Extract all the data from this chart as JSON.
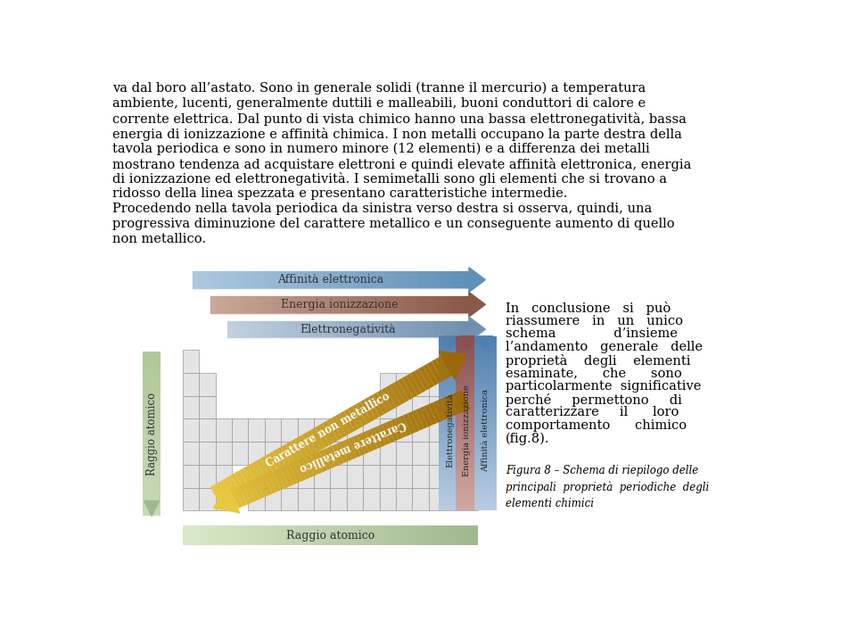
{
  "text_line1": "va dal boro all’astato. Sono in generale solidi (tranne il mercurio) a temperatura",
  "text_line2": "ambiente, lucenti, generalmente duttili e malleabili, buoni conduttori di calore e",
  "text_line3": "corrente elettrica. Dal punto di vista chimico hanno una bassa elettronegatività, bassa",
  "text_line4": "energia di ionizzazione e affinità chimica. I non metalli occupano la parte destra della",
  "text_line5": "tavola periodica e sono in numero minore (12 elementi) e a differenza dei metalli",
  "text_line6": "mostrano tendenza ad acquistare elettroni e quindi elevate affinità elettronica, energia",
  "text_line7": "di ionizzazione ed elettronegatività. I semimetalli sono gli elementi che si trovano a",
  "text_line8": "ridosso della linea spezzata e presentano caratteristiche intermedie.",
  "text_line9": "Procedendo nella tavola periodica da sinistra verso destra si osserva, quindi, una",
  "text_line10": "progressiva diminuzione del carattere metallico e un conseguente aumento di quello",
  "text_line11": "non metallico.",
  "text_right_line1": "In   conclusione   si   può",
  "text_right_line2": "riassumere   in   un   unico",
  "text_right_line3": "schema              d’insieme",
  "text_right_line4": "l’andamento   generale   delle",
  "text_right_line5": "proprietà    degli    elementi",
  "text_right_line6": "esaminate,      che      sono",
  "text_right_line7": "particolarmente  significative",
  "text_right_line8": "perché     permettono     di",
  "text_right_line9": "caratterizzare     il      loro",
  "text_right_line10": "comportamento      chimico",
  "text_right_line11": "(fig.8).",
  "caption": "Figura 8 – Schema di riepilogo delle\nprincipali  proprietà  periodiche  degli\nelementi chimici",
  "arrow_affinita_label": "Affinità elettronica",
  "arrow_energia_label": "Energia ionizzazione",
  "arrow_elettroneg_label": "Elettronegatività",
  "arrow_raggio_label": "Raggio atomico",
  "diag_carattere_non_metallico": "Carattere non metallico",
  "diag_carattere_metallico": "Carattere metallico",
  "vert_elettroneg_label": "Elettronegatività",
  "vert_energia_label": "Energia ionizzazione",
  "vert_affinita_label": "Affinità elettronica",
  "color_affinita_left": "#adc8e0",
  "color_affinita_right": "#6090b8",
  "color_energia_left": "#c8a898",
  "color_energia_right": "#8a5848",
  "color_elettroneg_left": "#c0d0e0",
  "color_elettroneg_right": "#7090b0",
  "color_raggio": "#c8d8b8",
  "color_non_metallico_light": "#e8c040",
  "color_non_metallico_dark": "#a06808",
  "color_metallico_light": "#e8c040",
  "color_metallico_dark": "#a06808",
  "color_vert_elettroneg_bot": "#b8cce0",
  "color_vert_elettroneg_top": "#5080b0",
  "color_vert_energia_bot": "#d0a8a0",
  "color_vert_energia_top": "#885050",
  "color_vert_affinita_bot": "#b8cce0",
  "color_vert_affinita_top": "#5080b0",
  "bg_color": "#ffffff",
  "text_color": "#000000"
}
